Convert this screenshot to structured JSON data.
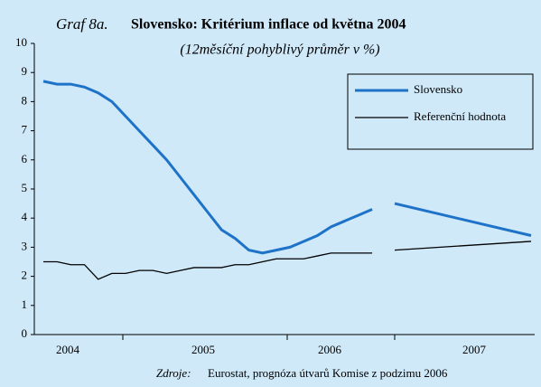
{
  "chart_data": {
    "type": "line",
    "title_prefix": "Graf 8a.",
    "title": "Slovensko:  Kritérium inflace od května 2004",
    "subtitle": "(12měsíční pohyblivý průměr v %)",
    "source_label": "Zdroje:",
    "source": "Eurostat, prognóza útvarů Komise z podzimu 2006",
    "x_labels": [
      "2004",
      "2005",
      "2006",
      "2007"
    ],
    "categories": [
      null,
      null,
      null,
      null,
      null,
      null,
      null,
      null,
      null,
      null,
      null,
      null,
      null,
      null,
      null,
      null,
      null,
      null,
      null,
      null,
      null,
      null,
      null,
      null,
      null,
      null,
      null,
      null
    ],
    "series": [
      {
        "name": "Slovensko",
        "color": "#1e73c8",
        "values": [
          8.7,
          8.6,
          8.6,
          8.5,
          8.3,
          8.0,
          7.5,
          7.0,
          6.5,
          6.0,
          5.4,
          4.8,
          4.2,
          3.6,
          3.3,
          2.9,
          2.8,
          2.9,
          3.0,
          3.2,
          3.4,
          3.7,
          3.9,
          4.1,
          4.3,
          null,
          4.5,
          3.4
        ]
      },
      {
        "name": "Referenční hodnota",
        "color": "#000000",
        "values": [
          2.5,
          2.5,
          2.4,
          2.4,
          1.9,
          2.1,
          2.1,
          2.2,
          2.2,
          2.1,
          2.2,
          2.3,
          2.3,
          2.3,
          2.4,
          2.4,
          2.5,
          2.6,
          2.6,
          2.6,
          2.7,
          2.8,
          2.8,
          2.8,
          2.8,
          null,
          2.9,
          3.2
        ]
      }
    ],
    "ylim": [
      0,
      10
    ],
    "yticks": [
      0,
      1,
      2,
      3,
      4,
      5,
      6,
      7,
      8,
      9,
      10
    ]
  }
}
